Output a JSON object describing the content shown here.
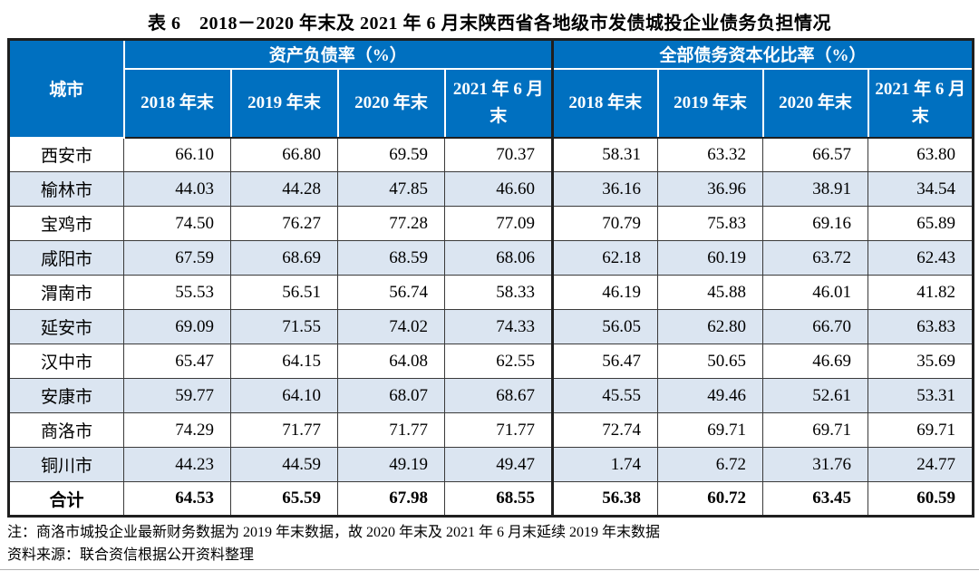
{
  "title": "表 6　2018－2020 年末及 2021 年 6 月末陕西省各地级市发债城投企业债务负担情况",
  "table": {
    "city_header": "城市",
    "groups": [
      {
        "label": "资产负债率（%）"
      },
      {
        "label": "全部债务资本化比率（%）"
      }
    ],
    "period_headers": [
      "2018 年末",
      "2019 年末",
      "2020 年末",
      "2021 年 6 月末"
    ],
    "rows": [
      {
        "city": "西安市",
        "values": [
          "66.10",
          "66.80",
          "69.59",
          "70.37",
          "58.31",
          "63.32",
          "66.57",
          "63.80"
        ]
      },
      {
        "city": "榆林市",
        "values": [
          "44.03",
          "44.28",
          "47.85",
          "46.60",
          "36.16",
          "36.96",
          "38.91",
          "34.54"
        ]
      },
      {
        "city": "宝鸡市",
        "values": [
          "74.50",
          "76.27",
          "77.28",
          "77.09",
          "70.79",
          "75.83",
          "69.16",
          "65.89"
        ]
      },
      {
        "city": "咸阳市",
        "values": [
          "67.59",
          "68.69",
          "68.59",
          "68.06",
          "62.18",
          "60.19",
          "63.72",
          "62.43"
        ]
      },
      {
        "city": "渭南市",
        "values": [
          "55.53",
          "56.51",
          "56.74",
          "58.33",
          "46.19",
          "45.88",
          "46.01",
          "41.82"
        ]
      },
      {
        "city": "延安市",
        "values": [
          "69.09",
          "71.55",
          "74.02",
          "74.33",
          "56.05",
          "62.80",
          "66.70",
          "63.83"
        ]
      },
      {
        "city": "汉中市",
        "values": [
          "65.47",
          "64.15",
          "64.08",
          "62.55",
          "56.47",
          "50.65",
          "46.69",
          "35.69"
        ]
      },
      {
        "city": "安康市",
        "values": [
          "59.77",
          "64.10",
          "68.07",
          "68.67",
          "45.55",
          "49.46",
          "52.61",
          "53.31"
        ]
      },
      {
        "city": "商洛市",
        "values": [
          "74.29",
          "71.77",
          "71.77",
          "71.77",
          "72.74",
          "69.71",
          "69.71",
          "69.71"
        ]
      },
      {
        "city": "铜川市",
        "values": [
          "44.23",
          "44.59",
          "49.19",
          "49.47",
          "1.74",
          "6.72",
          "31.76",
          "24.77"
        ]
      }
    ],
    "total_row": {
      "city": "合计",
      "values": [
        "64.53",
        "65.59",
        "67.98",
        "68.55",
        "56.38",
        "60.72",
        "63.45",
        "60.59"
      ]
    }
  },
  "notes": {
    "note": "注：商洛市城投企业最新财务数据为 2019 年末数据，故 2020 年末及 2021 年 6 月末延续 2019 年末数据",
    "source": "资料来源：联合资信根据公开资料整理"
  },
  "colors": {
    "header_bg": "#0070C0",
    "header_text": "#FFFFFF",
    "row_alt_bg": "#DBE5F1",
    "border_dark": "#1F1F1F"
  }
}
